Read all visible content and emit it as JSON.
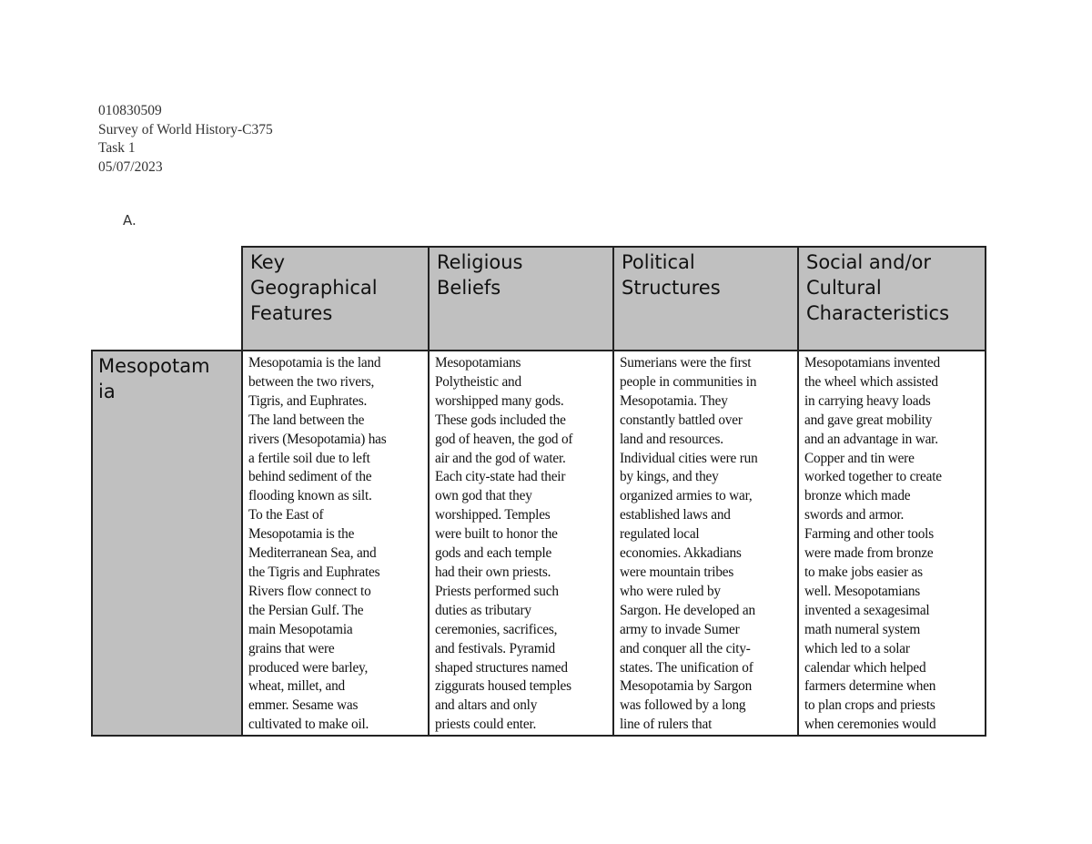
{
  "header": {
    "student_id": "010830509",
    "course": "Survey of World History-C375",
    "task": "Task 1",
    "date": "05/07/2023"
  },
  "section_label": "A.",
  "table": {
    "columns": [
      "Key\nGeographical\nFeatures",
      "Religious\nBeliefs",
      "Political\nStructures",
      "Social and/or\nCultural\nCharacteristics"
    ],
    "colors": {
      "header_bg": "#c0c0c0",
      "border": "#222222"
    },
    "rows": [
      {
        "label": "Mesopotam\nia",
        "cells": [
          "Mesopotamia is the land\nbetween the two rivers,\nTigris, and Euphrates.\nThe land between the\nrivers (Mesopotamia) has\na fertile soil due to left\nbehind sediment of the\nflooding known as silt.\nTo the East of\nMesopotamia is the\nMediterranean Sea, and\nthe Tigris and Euphrates\nRivers flow connect to\nthe Persian Gulf. The\nmain Mesopotamia\ngrains that were\nproduced were barley,\nwheat, millet, and\nemmer. Sesame was\ncultivated to make oil.",
          "Mesopotamians\nPolytheistic and\nworshipped many gods.\nThese gods included the\ngod of heaven, the god of\nair and the god of water.\nEach city-state had their\nown god that they\nworshipped. Temples\nwere built to honor the\ngods and each temple\nhad their own priests.\nPriests performed such\nduties as tributary\nceremonies, sacrifices,\nand festivals. Pyramid\nshaped structures named\nziggurats housed temples\nand altars and only\npriests could enter.",
          "Sumerians were the first\npeople in communities in\nMesopotamia.  They\nconstantly battled over\nland and resources.\nIndividual cities were run\nby kings, and they\norganized armies to war,\nestablished laws and\nregulated local\neconomies. Akkadians\nwere mountain tribes\nwho were ruled by\nSargon. He developed an\narmy to invade Sumer\nand conquer all the city-\nstates. The unification of\nMesopotamia by Sargon\nwas followed by a long\nline of rulers that",
          "Mesopotamians invented\nthe wheel which assisted\nin carrying heavy loads\nand gave great mobility\nand an advantage in war.\nCopper and tin were\nworked together to create\nbronze which made\nswords and armor.\nFarming and other tools\nwere made from bronze\nto make jobs easier as\nwell. Mesopotamians\ninvented a sexagesimal\nmath numeral system\nwhich led to a solar\ncalendar which helped\nfarmers determine when\nto plan crops and priests\nwhen ceremonies would"
        ]
      }
    ]
  }
}
